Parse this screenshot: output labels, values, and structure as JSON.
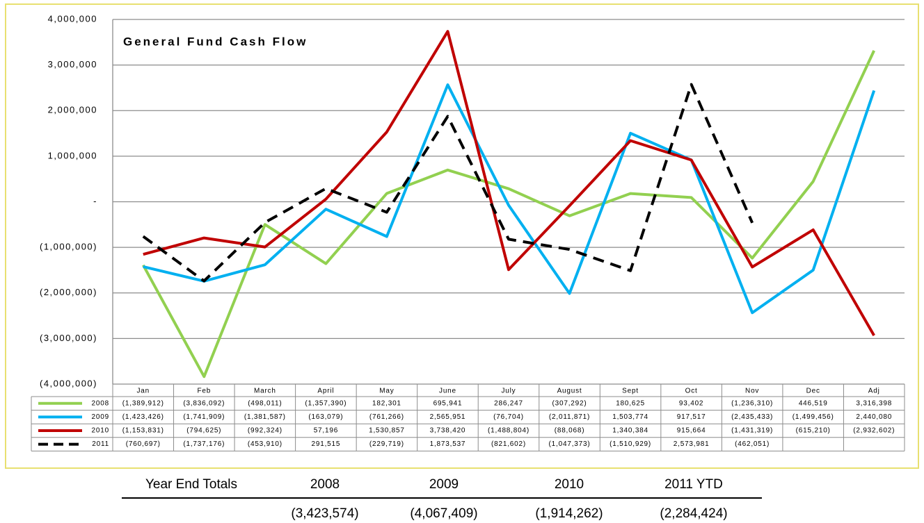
{
  "chart_data": {
    "type": "line",
    "title": "General Fund Cash Flow",
    "categories": [
      "Jan",
      "Feb",
      "March",
      "April",
      "May",
      "June",
      "July",
      "August",
      "Sept",
      "Oct",
      "Nov",
      "Dec",
      "Adj"
    ],
    "series": [
      {
        "name": "2008",
        "color": "#92d050",
        "dash": false,
        "values": [
          -1389912,
          -3836092,
          -498011,
          -1357390,
          182301,
          695941,
          286247,
          -307292,
          180625,
          93402,
          -1236310,
          446519,
          3316398
        ],
        "value_labels": [
          "(1,389,912)",
          "(3,836,092)",
          "(498,011)",
          "(1,357,390)",
          "182,301",
          "695,941",
          "286,247",
          "(307,292)",
          "180,625",
          "93,402",
          "(1,236,310)",
          "446,519",
          "3,316,398"
        ]
      },
      {
        "name": "2009",
        "color": "#00b0f0",
        "dash": false,
        "values": [
          -1423426,
          -1741909,
          -1381587,
          -163079,
          -761266,
          2565951,
          -76704,
          -2011871,
          1503774,
          917517,
          -2435433,
          -1499456,
          2440080
        ],
        "value_labels": [
          "(1,423,426)",
          "(1,741,909)",
          "(1,381,587)",
          "(163,079)",
          "(761,266)",
          "2,565,951",
          "(76,704)",
          "(2,011,871)",
          "1,503,774",
          "917,517",
          "(2,435,433)",
          "(1,499,456)",
          "2,440,080"
        ]
      },
      {
        "name": "2010",
        "color": "#c00000",
        "dash": false,
        "values": [
          -1153831,
          -794625,
          -992324,
          57196,
          1530857,
          3738420,
          -1488804,
          -88068,
          1340384,
          915664,
          -1431319,
          -615210,
          -2932602
        ],
        "value_labels": [
          "(1,153,831)",
          "(794,625)",
          "(992,324)",
          "57,196",
          "1,530,857",
          "3,738,420",
          "(1,488,804)",
          "(88,068)",
          "1,340,384",
          "915,664",
          "(1,431,319)",
          "(615,210)",
          "(2,932,602)"
        ]
      },
      {
        "name": "2011",
        "color": "#000000",
        "dash": true,
        "values": [
          -760697,
          -1737176,
          -453910,
          291515,
          -229719,
          1873537,
          -821602,
          -1047373,
          -1510929,
          2573981,
          -462051,
          null,
          null
        ],
        "value_labels": [
          "(760,697)",
          "(1,737,176)",
          "(453,910)",
          "291,515",
          "(229,719)",
          "1,873,537",
          "(821,602)",
          "(1,047,373)",
          "(1,510,929)",
          "2,573,981",
          "(462,051)",
          null,
          null
        ]
      }
    ],
    "ylim": [
      -4000000,
      4000000
    ],
    "yticks": [
      {
        "value": -4000000,
        "label": "(4,000,000)"
      },
      {
        "value": -3000000,
        "label": "(3,000,000)"
      },
      {
        "value": -2000000,
        "label": "(2,000,000)"
      },
      {
        "value": -1000000,
        "label": "(1,000,000)"
      },
      {
        "value": 0,
        "label": "-"
      },
      {
        "value": 1000000,
        "label": "1,000,000"
      },
      {
        "value": 2000000,
        "label": "2,000,000"
      },
      {
        "value": 3000000,
        "label": "3,000,000"
      },
      {
        "value": 4000000,
        "label": "4,000,000"
      }
    ],
    "grid": true
  },
  "year_end_totals": {
    "title": "Year End Totals",
    "columns": [
      "2008",
      "2009",
      "2010",
      "2011 YTD"
    ],
    "values": [
      -3423574,
      -4067409,
      -1914262,
      -2284424
    ],
    "value_labels": [
      "(3,423,574)",
      "(4,067,409)",
      "(1,914,262)",
      "(2,284,424)"
    ]
  }
}
